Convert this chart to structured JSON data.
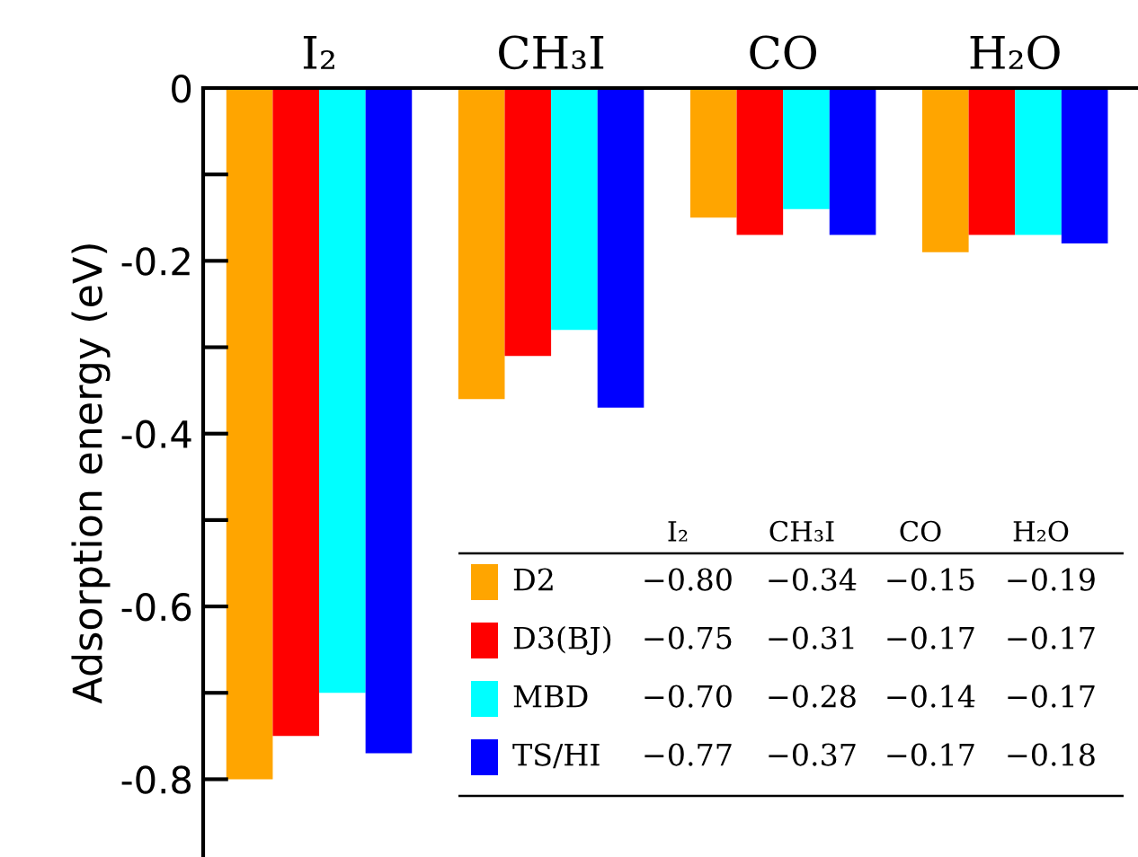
{
  "chart_data": {
    "type": "bar",
    "ylabel": "Adsorption energy (eV)",
    "categories": [
      "I₂",
      "CH₃I",
      "CO",
      "H₂O"
    ],
    "series": [
      {
        "name": "D2",
        "color": "#ffa500",
        "values": [
          -0.8,
          -0.36,
          -0.15,
          -0.19
        ]
      },
      {
        "name": "D3(BJ)",
        "color": "#ff0000",
        "values": [
          -0.75,
          -0.31,
          -0.17,
          -0.17
        ]
      },
      {
        "name": "MBD",
        "color": "#00ffff",
        "values": [
          -0.7,
          -0.28,
          -0.14,
          -0.17
        ]
      },
      {
        "name": "TS/HI",
        "color": "#0000ff",
        "values": [
          -0.77,
          -0.37,
          -0.17,
          -0.18
        ]
      }
    ],
    "annotations": [
      "−0.80",
      "−0.34",
      "−0.15",
      "−0.19",
      "−0.75",
      "−0.31",
      "−0.17",
      "−0.17",
      "−0.70",
      "−0.28",
      "−0.14",
      "−0.17",
      "−0.77",
      "−0.37",
      "−0.17",
      "−0.18"
    ],
    "ylim": [
      -0.89,
      0
    ],
    "yticks": [
      0,
      {
        "value": -0.1,
        "label": null
      },
      -0.2,
      {
        "value": -0.3,
        "label": null
      },
      -0.4,
      {
        "value": -0.5,
        "label": null
      },
      -0.6,
      {
        "value": -0.7,
        "label": null
      },
      -0.8
    ],
    "legend": "bottom",
    "grid": false
  }
}
